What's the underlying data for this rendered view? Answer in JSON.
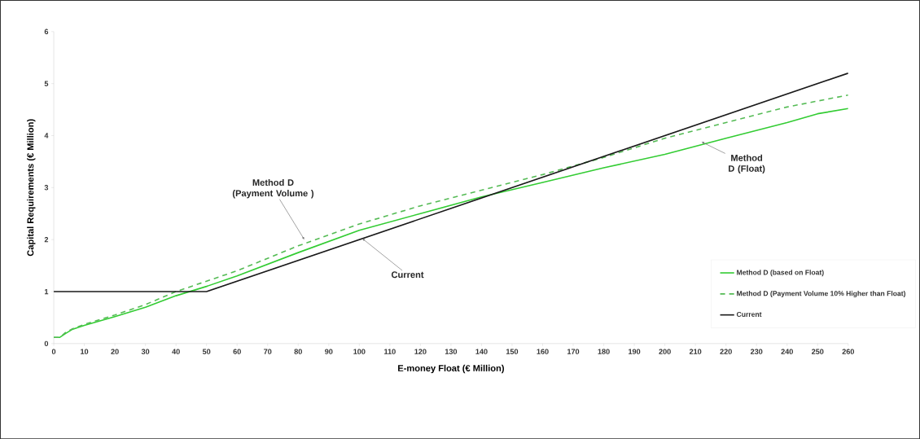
{
  "chart_data": {
    "type": "line",
    "xlabel": "E-money Float (€ Million)",
    "ylabel": "Capital Requirements (€ Million)",
    "xlim": [
      0,
      260
    ],
    "ylim": [
      0,
      6
    ],
    "xticks": [
      0,
      10,
      20,
      30,
      40,
      50,
      60,
      70,
      80,
      90,
      100,
      110,
      120,
      130,
      140,
      150,
      160,
      170,
      180,
      190,
      200,
      210,
      220,
      230,
      240,
      250,
      260
    ],
    "yticks": [
      0,
      1,
      2,
      3,
      4,
      5,
      6
    ],
    "grid": false,
    "legend": "bottom right",
    "marker": "none",
    "series": [
      {
        "name": "Method D (based on Float)",
        "color": "#33cc33",
        "line_style": "solid",
        "x": [
          0,
          2,
          4,
          6,
          10,
          20,
          30,
          40,
          50,
          60,
          80,
          100,
          120,
          140,
          160,
          180,
          200,
          220,
          240,
          250,
          260
        ],
        "values": [
          0.12,
          0.12,
          0.2,
          0.27,
          0.35,
          0.52,
          0.7,
          0.92,
          1.1,
          1.3,
          1.75,
          2.18,
          2.5,
          2.82,
          3.1,
          3.38,
          3.64,
          3.95,
          4.25,
          4.42,
          4.52
        ]
      },
      {
        "name": "Method D (Payment Volume 10% Higher than Float)",
        "color": "#55bb55",
        "line_style": "dashed",
        "x": [
          0,
          2,
          4,
          6,
          10,
          20,
          30,
          40,
          50,
          60,
          80,
          100,
          120,
          140,
          160,
          180,
          200,
          220,
          240,
          260
        ],
        "values": [
          0.12,
          0.12,
          0.22,
          0.28,
          0.37,
          0.55,
          0.75,
          1.0,
          1.2,
          1.4,
          1.88,
          2.3,
          2.65,
          2.95,
          3.25,
          3.58,
          3.95,
          4.25,
          4.55,
          4.78
        ]
      },
      {
        "name": "Current",
        "color": "#1a1a1a",
        "line_style": "solid",
        "x": [
          0,
          50,
          260
        ],
        "values": [
          1,
          1,
          5.2
        ]
      }
    ],
    "annotations": [
      {
        "text": "Method D (Payment Volume )",
        "x": 82,
        "y": 2.0
      },
      {
        "text": "Current",
        "x": 101,
        "y": 2.02
      },
      {
        "text": "Method D (Float)",
        "x": 212,
        "y": 3.88
      }
    ]
  }
}
